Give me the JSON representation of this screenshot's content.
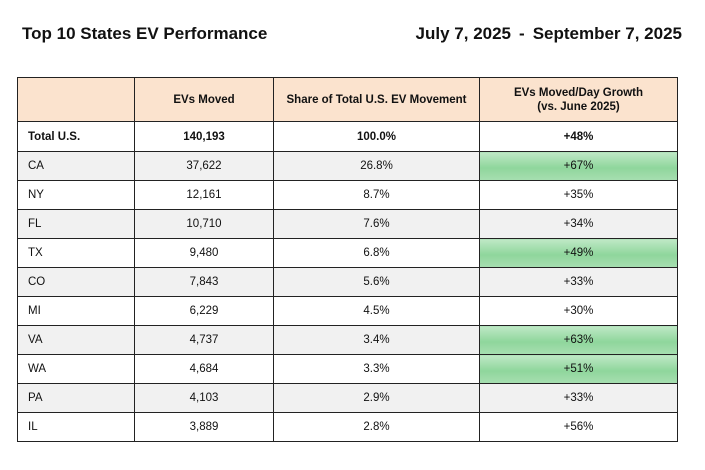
{
  "header": {
    "title": "Top 10 States EV Performance",
    "date_start": "July 7, 2025",
    "date_sep": "-",
    "date_end": "September 7, 2025"
  },
  "table": {
    "columns": [
      "",
      "EVs  Moved",
      "Share of Total U.S. EV Movement",
      "EVs Moved/Day Growth",
      "(vs. June 2025)"
    ],
    "total": {
      "label": "Total U.S.",
      "moved": "140,193",
      "share": "100.0%",
      "growth": "+48%"
    },
    "rows": [
      {
        "state": "CA",
        "moved": "37,622",
        "share": "26.8%",
        "growth": "+67%"
      },
      {
        "state": "NY",
        "moved": "12,161",
        "share": "8.7%",
        "growth": "+35%"
      },
      {
        "state": "FL",
        "moved": "10,710",
        "share": "7.6%",
        "growth": "+34%"
      },
      {
        "state": "TX",
        "moved": "9,480",
        "share": "6.8%",
        "growth": "+49%"
      },
      {
        "state": "CO",
        "moved": "7,843",
        "share": "5.6%",
        "growth": "+33%"
      },
      {
        "state": "MI",
        "moved": "6,229",
        "share": "4.5%",
        "growth": "+30%"
      },
      {
        "state": "VA",
        "moved": "4,737",
        "share": "3.4%",
        "growth": "+63%"
      },
      {
        "state": "WA",
        "moved": "4,684",
        "share": "3.3%",
        "growth": "+51%"
      },
      {
        "state": "PA",
        "moved": "4,103",
        "share": "2.9%",
        "growth": "+33%"
      },
      {
        "state": "IL",
        "moved": "3,889",
        "share": "2.8%",
        "growth": "+56%"
      }
    ],
    "highlight_color": "#8fd69c",
    "header_color": "#fbe3ce",
    "shade_color": "#f1f1f1"
  }
}
